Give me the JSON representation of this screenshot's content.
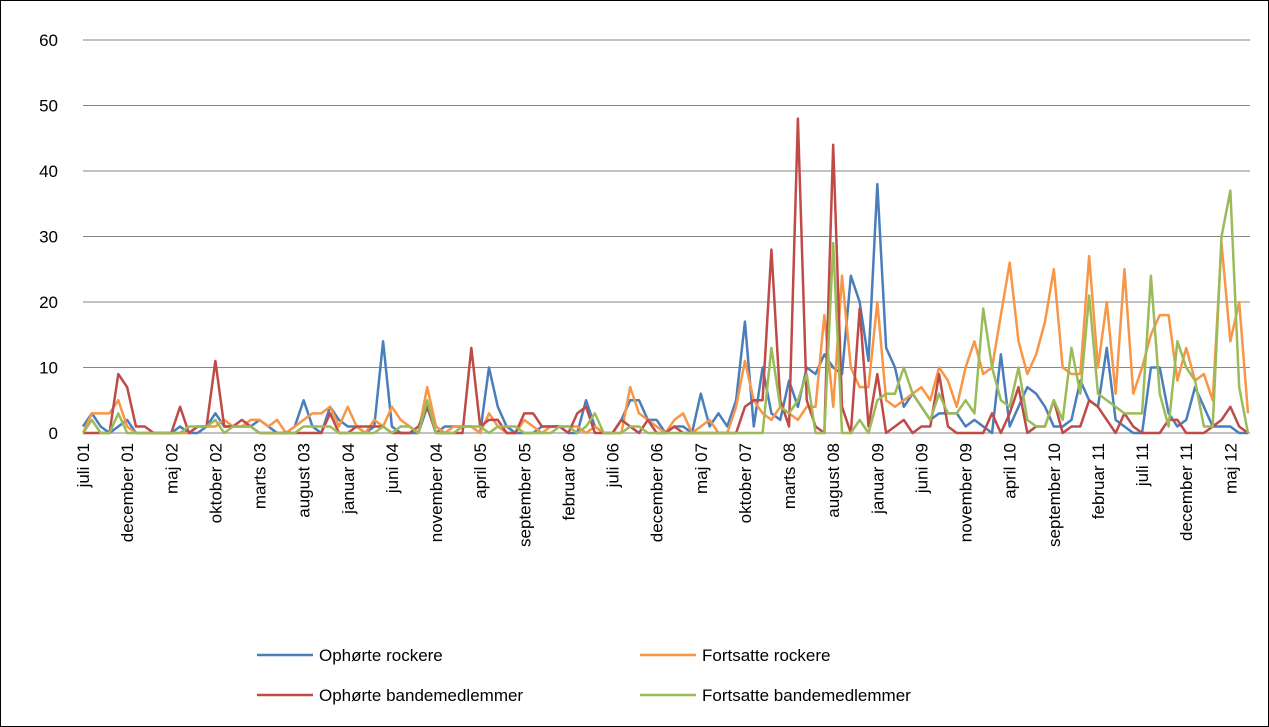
{
  "chart_data": {
    "type": "line",
    "categories": [
      "juli 01",
      null,
      null,
      null,
      null,
      "december 01",
      null,
      null,
      null,
      null,
      "maj 02",
      null,
      null,
      null,
      null,
      "oktober 02",
      null,
      null,
      null,
      null,
      "marts 03",
      null,
      null,
      null,
      null,
      "august 03",
      null,
      null,
      null,
      null,
      "januar 04",
      null,
      null,
      null,
      null,
      "juni 04",
      null,
      null,
      null,
      null,
      "november 04",
      null,
      null,
      null,
      null,
      "april 05",
      null,
      null,
      null,
      null,
      "september 05",
      null,
      null,
      null,
      null,
      "februar 06",
      null,
      null,
      null,
      null,
      "juli 06",
      null,
      null,
      null,
      null,
      "december 06",
      null,
      null,
      null,
      null,
      "maj 07",
      null,
      null,
      null,
      null,
      "oktober 07",
      null,
      null,
      null,
      null,
      "marts 08",
      null,
      null,
      null,
      null,
      "august 08",
      null,
      null,
      null,
      null,
      "januar 09",
      null,
      null,
      null,
      null,
      "juni 09",
      null,
      null,
      null,
      null,
      "november 09",
      null,
      null,
      null,
      null,
      "april 10",
      null,
      null,
      null,
      null,
      "september 10",
      null,
      null,
      null,
      null,
      "februar 11",
      null,
      null,
      null,
      null,
      "juli 11",
      null,
      null,
      null,
      null,
      "december 11",
      null,
      null,
      null,
      null,
      "maj 12",
      null,
      null
    ],
    "series": [
      {
        "name": "Ophørte rockere",
        "color": "#4a7ebb",
        "values": [
          1,
          3,
          1,
          0,
          1,
          2,
          0,
          0,
          0,
          0,
          0,
          1,
          0,
          0,
          1,
          3,
          1,
          1,
          1,
          1,
          2,
          1,
          0,
          0,
          1,
          5,
          1,
          0,
          4,
          2,
          1,
          1,
          0,
          1,
          14,
          1,
          0,
          0,
          0,
          4,
          0,
          1,
          1,
          1,
          1,
          0,
          10,
          4,
          1,
          0,
          0,
          0,
          1,
          1,
          1,
          0,
          0,
          5,
          1,
          0,
          0,
          2,
          5,
          5,
          2,
          2,
          0,
          1,
          1,
          0,
          6,
          1,
          3,
          1,
          5,
          17,
          1,
          10,
          3,
          2,
          8,
          4,
          10,
          9,
          12,
          10,
          9,
          24,
          20,
          11,
          38,
          13,
          10,
          4,
          6,
          4,
          2,
          3,
          3,
          3,
          1,
          2,
          1,
          0,
          12,
          1,
          4,
          7,
          6,
          4,
          1,
          1,
          2,
          8,
          5,
          4,
          13,
          2,
          1,
          0,
          0,
          10,
          10,
          3,
          1,
          2,
          7,
          4,
          1,
          1,
          1,
          0,
          0
        ]
      },
      {
        "name": "Fortsatte rockere",
        "color": "#f79646",
        "values": [
          0,
          3,
          3,
          3,
          5,
          1,
          0,
          0,
          0,
          0,
          0,
          0,
          0,
          1,
          1,
          1,
          2,
          1,
          1,
          2,
          2,
          1,
          2,
          0,
          1,
          2,
          3,
          3,
          4,
          1,
          4,
          1,
          0,
          2,
          1,
          4,
          2,
          1,
          0,
          7,
          1,
          0,
          1,
          1,
          1,
          0,
          3,
          1,
          0,
          0,
          2,
          1,
          0,
          1,
          1,
          1,
          1,
          0,
          1,
          0,
          0,
          0,
          7,
          3,
          2,
          1,
          0,
          2,
          3,
          0,
          1,
          2,
          0,
          0,
          4,
          11,
          5,
          3,
          2,
          4,
          3,
          2,
          4,
          4,
          18,
          4,
          24,
          10,
          7,
          7,
          20,
          5,
          4,
          5,
          6,
          7,
          5,
          10,
          8,
          4,
          10,
          14,
          9,
          10,
          18,
          26,
          14,
          9,
          12,
          17,
          25,
          10,
          9,
          9,
          27,
          10,
          20,
          6,
          25,
          6,
          10,
          15,
          18,
          18,
          8,
          13,
          8,
          9,
          5,
          29,
          14,
          20,
          3
        ]
      },
      {
        "name": "Ophørte bandemedlemmer",
        "color": "#be4b48",
        "values": [
          0,
          0,
          0,
          0,
          9,
          7,
          1,
          1,
          0,
          0,
          0,
          4,
          0,
          1,
          1,
          11,
          1,
          1,
          2,
          1,
          0,
          0,
          0,
          0,
          0,
          0,
          0,
          0,
          3,
          0,
          0,
          1,
          1,
          1,
          1,
          0,
          0,
          0,
          1,
          4,
          0,
          0,
          0,
          0,
          13,
          1,
          2,
          2,
          0,
          0,
          3,
          3,
          1,
          1,
          1,
          0,
          3,
          4,
          0,
          0,
          0,
          2,
          1,
          0,
          2,
          0,
          0,
          1,
          0,
          0,
          0,
          0,
          0,
          0,
          0,
          4,
          5,
          5,
          28,
          5,
          1,
          48,
          5,
          1,
          0,
          44,
          4,
          0,
          19,
          1,
          9,
          0,
          1,
          2,
          0,
          1,
          1,
          9,
          1,
          0,
          0,
          0,
          0,
          3,
          0,
          3,
          7,
          0,
          1,
          1,
          5,
          0,
          1,
          1,
          5,
          4,
          2,
          0,
          3,
          1,
          0,
          0,
          0,
          2,
          2,
          0,
          0,
          0,
          1,
          2,
          4,
          1,
          0
        ]
      },
      {
        "name": "Fortsatte bandemedlemmer",
        "color": "#9bbb59",
        "values": [
          0,
          2,
          0,
          0,
          3,
          0,
          0,
          0,
          0,
          0,
          0,
          0,
          1,
          1,
          1,
          2,
          0,
          1,
          1,
          1,
          0,
          0,
          0,
          0,
          0,
          1,
          1,
          1,
          1,
          0,
          0,
          0,
          0,
          0,
          1,
          0,
          1,
          1,
          0,
          5,
          0,
          0,
          0,
          1,
          1,
          1,
          0,
          1,
          1,
          1,
          0,
          0,
          0,
          0,
          1,
          1,
          0,
          1,
          3,
          0,
          0,
          0,
          1,
          1,
          0,
          0,
          0,
          0,
          0,
          0,
          0,
          0,
          0,
          0,
          0,
          0,
          0,
          0,
          13,
          4,
          3,
          5,
          9,
          0,
          0,
          29,
          0,
          0,
          2,
          0,
          5,
          6,
          6,
          10,
          6,
          4,
          2,
          6,
          3,
          3,
          5,
          3,
          19,
          10,
          5,
          4,
          10,
          2,
          1,
          1,
          5,
          2,
          13,
          6,
          21,
          6,
          5,
          4,
          3,
          3,
          3,
          24,
          6,
          1,
          14,
          10,
          8,
          1,
          1,
          30,
          37,
          7,
          0
        ]
      }
    ],
    "ylim": [
      0,
      60
    ],
    "yticks": [
      0,
      10,
      20,
      30,
      40,
      50,
      60
    ],
    "grid": true,
    "legend": "bottom"
  }
}
